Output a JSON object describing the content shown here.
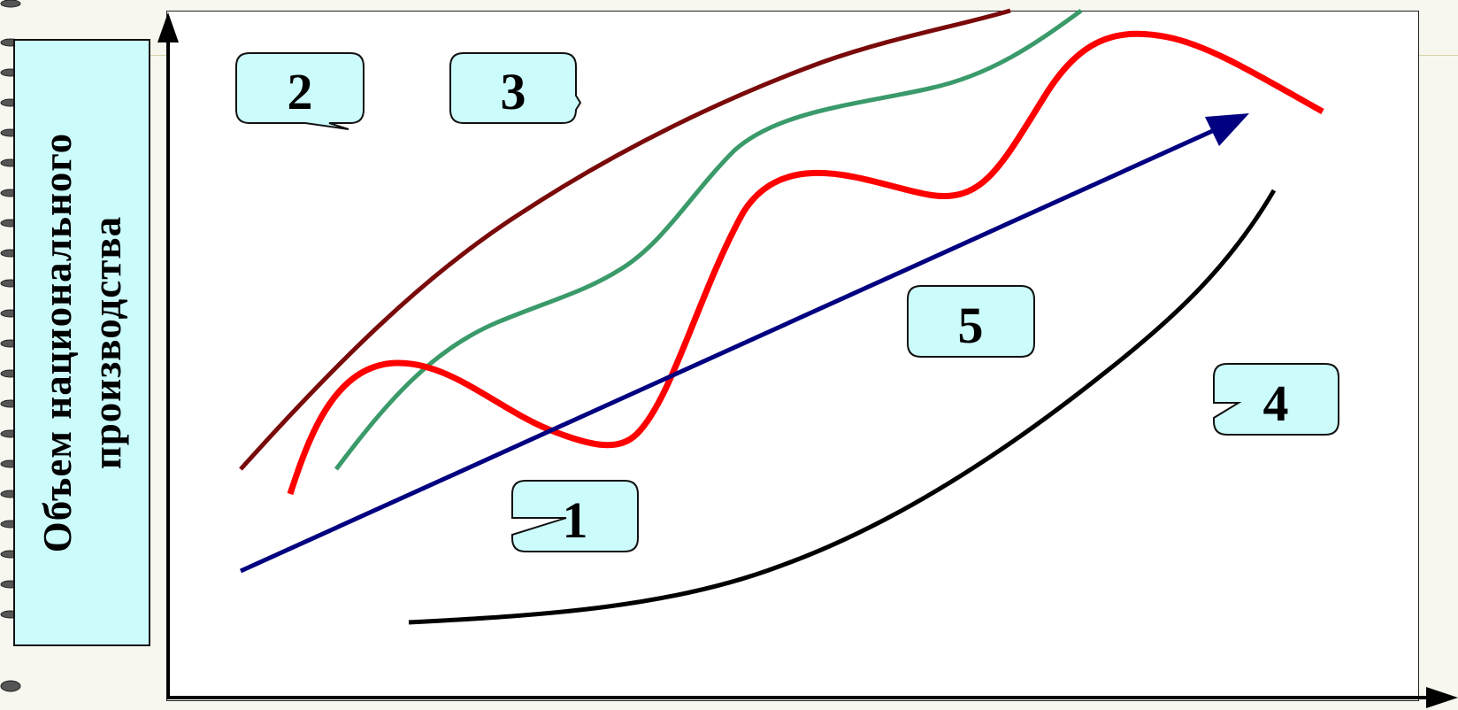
{
  "y_axis_label": {
    "line1": "Объем национального",
    "line2": "производства"
  },
  "callouts": [
    {
      "id": "callout-1",
      "text": "1"
    },
    {
      "id": "callout-2",
      "text": "2"
    },
    {
      "id": "callout-3",
      "text": "3"
    },
    {
      "id": "callout-4",
      "text": "4"
    },
    {
      "id": "callout-5",
      "text": "5"
    }
  ],
  "curve_colors": {
    "trend_arrow": "#000080",
    "dark_red_curve": "#7a0a0a",
    "green_curve": "#3a9a6a",
    "red_wave_curve": "#ff0000",
    "black_curve": "#000000"
  },
  "callout_fill": "#ccfbfb"
}
